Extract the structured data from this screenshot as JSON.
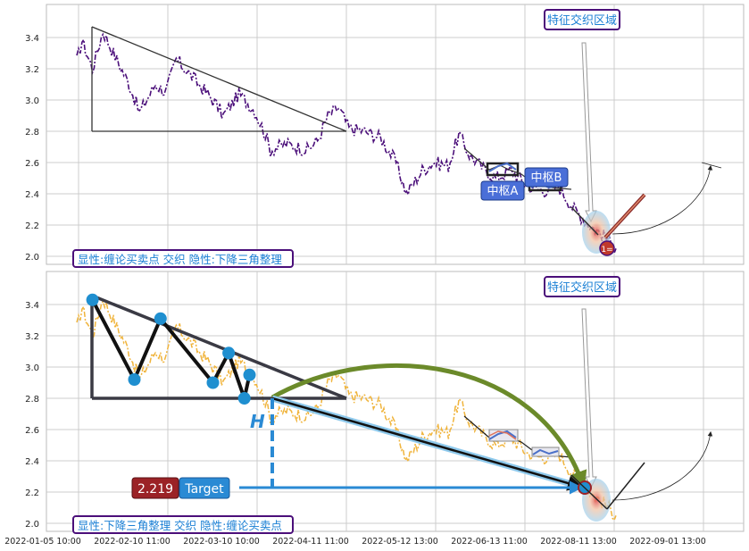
{
  "colors": {
    "top_series": "#4b0f7a",
    "bottom_series": "#f0b43c",
    "grid": "#cccccc",
    "triangle": "#333333",
    "label_border": "#4b0f7a",
    "label_text": "#1a7fd4",
    "hub_fill": "#4a6fd8",
    "marker_blue": "#1f8fd0",
    "wave_green": "#6b8a2a",
    "target_red": "#9b2226",
    "target_blue": "#2a8ad4",
    "h_text": "#2a8ad4"
  },
  "chart_data": [
    {
      "type": "line",
      "name": "top-panel",
      "ylim": [
        1.96,
        3.6
      ],
      "y_ticks": [
        "3.4",
        "3.2",
        "3.0",
        "2.8",
        "2.6",
        "2.4",
        "2.2",
        "2.0"
      ],
      "grid": true,
      "series_anchors": [
        {
          "t": 0,
          "y": 3.25
        },
        {
          "t": 1,
          "y": 3.38
        },
        {
          "t": 3,
          "y": 3.2
        },
        {
          "t": 5,
          "y": 3.44
        },
        {
          "t": 7,
          "y": 3.3
        },
        {
          "t": 10,
          "y": 3.1
        },
        {
          "t": 12,
          "y": 2.92
        },
        {
          "t": 15,
          "y": 3.1
        },
        {
          "t": 17,
          "y": 3.05
        },
        {
          "t": 19,
          "y": 3.26
        },
        {
          "t": 22,
          "y": 3.15
        },
        {
          "t": 26,
          "y": 3.0
        },
        {
          "t": 28,
          "y": 2.9
        },
        {
          "t": 31,
          "y": 3.04
        },
        {
          "t": 34,
          "y": 2.93
        },
        {
          "t": 36,
          "y": 2.78
        },
        {
          "t": 37,
          "y": 2.68
        },
        {
          "t": 40,
          "y": 2.72
        },
        {
          "t": 44,
          "y": 2.68
        },
        {
          "t": 46,
          "y": 2.74
        },
        {
          "t": 48,
          "y": 2.9
        },
        {
          "t": 50,
          "y": 2.95
        },
        {
          "t": 52,
          "y": 2.82
        },
        {
          "t": 55,
          "y": 2.8
        },
        {
          "t": 58,
          "y": 2.76
        },
        {
          "t": 61,
          "y": 2.6
        },
        {
          "t": 63,
          "y": 2.4
        },
        {
          "t": 66,
          "y": 2.55
        },
        {
          "t": 68,
          "y": 2.6
        },
        {
          "t": 71,
          "y": 2.58
        },
        {
          "t": 73,
          "y": 2.78
        },
        {
          "t": 75,
          "y": 2.65
        },
        {
          "t": 78,
          "y": 2.55
        },
        {
          "t": 80,
          "y": 2.5
        },
        {
          "t": 83,
          "y": 2.55
        },
        {
          "t": 86,
          "y": 2.45
        },
        {
          "t": 89,
          "y": 2.42
        },
        {
          "t": 92,
          "y": 2.45
        },
        {
          "t": 95,
          "y": 2.3
        },
        {
          "t": 98,
          "y": 2.2
        },
        {
          "t": 101,
          "y": 2.12
        },
        {
          "t": 103,
          "y": 2.05
        }
      ],
      "labels": {
        "top_right": "特征交织区域",
        "bottom_left": "显性:缠论买卖点 交织 隐性:下降三角整理",
        "hub_a": "中枢A",
        "hub_b": "中枢B",
        "point_mark": "1="
      }
    },
    {
      "type": "line",
      "name": "bottom-panel",
      "ylim": [
        1.96,
        3.6
      ],
      "y_ticks": [
        "3.4",
        "3.2",
        "3.0",
        "2.8",
        "2.6",
        "2.4",
        "2.2",
        "2.0"
      ],
      "grid": true,
      "x_ticks": [
        "2022-01-05 10:00",
        "2022-02-10 11:00",
        "2022-03-10 10:00",
        "2022-04-11 11:00",
        "2022-05-12 13:00",
        "2022-06-13 11:00",
        "2022-08-11 13:00",
        "2022-09-01 13:00"
      ],
      "pivots": [
        {
          "t": 3,
          "y": 3.43
        },
        {
          "t": 11,
          "y": 2.92
        },
        {
          "t": 16,
          "y": 3.31
        },
        {
          "t": 26,
          "y": 2.9
        },
        {
          "t": 29,
          "y": 3.09
        },
        {
          "t": 32,
          "y": 2.8
        },
        {
          "t": 33,
          "y": 2.95
        }
      ],
      "target": 2.219,
      "labels": {
        "top_right": "特征交织区域",
        "bottom_left": "显性:下降三角整理 交织 隐性:缠论买卖点",
        "h": "H",
        "target_value": "2.219",
        "target_label": "Target"
      }
    }
  ]
}
